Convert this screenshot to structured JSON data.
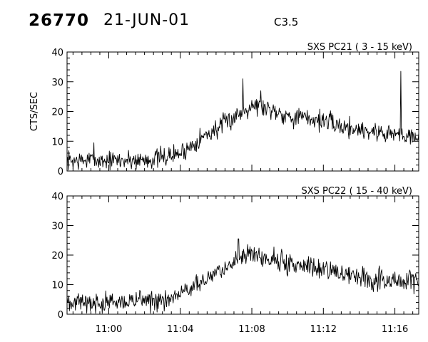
{
  "header": {
    "event_id": "26770",
    "date": "21-JUN-01",
    "flare_class": "C3.5"
  },
  "chart_data": [
    {
      "type": "line",
      "title": "SXS PC21  (  3 - 15 keV)",
      "ylabel": "CTS/SEC",
      "xlabel": "",
      "ylim": [
        0,
        40
      ],
      "yticks": [
        0,
        10,
        20,
        30,
        40
      ],
      "xlim": [
        "10:57:40",
        "11:17:20"
      ],
      "xticks": [
        "11:00",
        "11:04",
        "11:08",
        "11:12",
        "11:16"
      ],
      "show_xtick_labels": false,
      "grid": false,
      "series": [
        {
          "profile": [
            [
              "10:57:40",
              3.5
            ],
            [
              "11:00:00",
              3.5
            ],
            [
              "11:02:00",
              3.8
            ],
            [
              "11:03:00",
              4.5
            ],
            [
              "11:04:00",
              6.0
            ],
            [
              "11:04:30",
              8.0
            ],
            [
              "11:05:00",
              10.5
            ],
            [
              "11:06:00",
              14.0
            ],
            [
              "11:07:00",
              18.0
            ],
            [
              "11:08:00",
              22.5
            ],
            [
              "11:08:40",
              21.5
            ],
            [
              "11:09:30",
              20.0
            ],
            [
              "11:10:00",
              18.5
            ],
            [
              "11:12:00",
              17.0
            ],
            [
              "11:13:00",
              15.0
            ],
            [
              "11:15:00",
              13.0
            ],
            [
              "11:16:00",
              12.5
            ],
            [
              "11:17:20",
              12.0
            ]
          ],
          "noise": 2.7,
          "spikes": [
            [
              "10:59:10",
              9.5
            ],
            [
              "11:07:30",
              31
            ],
            [
              "11:08:30",
              27
            ],
            [
              "11:16:20",
              33.5
            ]
          ]
        }
      ]
    },
    {
      "type": "line",
      "title": "SXS PC22  ( 15 - 40 keV)",
      "ylabel": "",
      "xlabel": "",
      "ylim": [
        0,
        40
      ],
      "yticks": [
        0,
        10,
        20,
        30,
        40
      ],
      "xlim": [
        "10:57:40",
        "11:17:20"
      ],
      "xticks": [
        "11:00",
        "11:04",
        "11:08",
        "11:12",
        "11:16"
      ],
      "show_xtick_labels": true,
      "grid": false,
      "series": [
        {
          "profile": [
            [
              "10:57:40",
              3.5
            ],
            [
              "11:00:00",
              3.8
            ],
            [
              "11:02:00",
              4.5
            ],
            [
              "11:03:30",
              5.5
            ],
            [
              "11:04:00",
              7.0
            ],
            [
              "11:04:30",
              9.0
            ],
            [
              "11:05:00",
              11.0
            ],
            [
              "11:06:00",
              14.0
            ],
            [
              "11:07:00",
              17.0
            ],
            [
              "11:07:30",
              21.0
            ],
            [
              "11:08:00",
              20.0
            ],
            [
              "11:09:00",
              18.5
            ],
            [
              "11:10:00",
              17.0
            ],
            [
              "11:12:00",
              15.0
            ],
            [
              "11:14:00",
              13.0
            ],
            [
              "11:15:00",
              12.0
            ],
            [
              "11:17:20",
              11.0
            ]
          ],
          "noise": 2.8,
          "spikes": [
            [
              "11:07:15",
              25.5
            ],
            [
              "11:09:40",
              22
            ]
          ]
        }
      ]
    }
  ]
}
